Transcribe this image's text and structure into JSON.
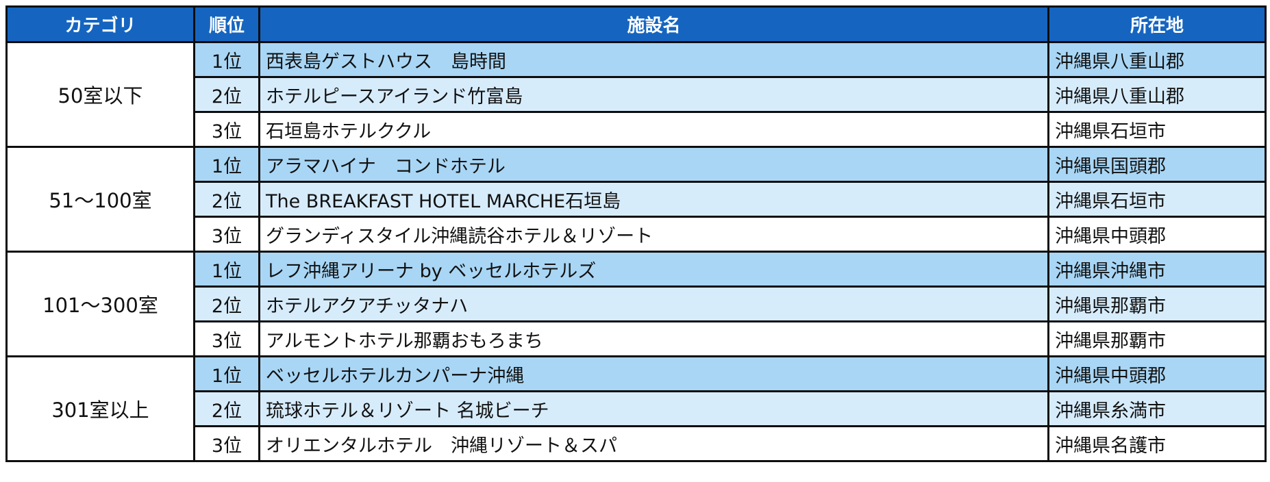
{
  "headers": {
    "category": "カテゴリ",
    "rank": "順位",
    "facility": "施設名",
    "location": "所在地"
  },
  "groups": [
    {
      "category": "50室以下",
      "rows": [
        {
          "rank": "1位",
          "facility": "西表島ゲストハウス　島時間",
          "location": "沖縄県八重山郡"
        },
        {
          "rank": "2位",
          "facility": "ホテルピースアイランド竹富島",
          "location": "沖縄県八重山郡"
        },
        {
          "rank": "3位",
          "facility": "石垣島ホテルククル",
          "location": "沖縄県石垣市"
        }
      ]
    },
    {
      "category": "51～100室",
      "rows": [
        {
          "rank": "1位",
          "facility": "アラマハイナ　コンドホテル",
          "location": "沖縄県国頭郡"
        },
        {
          "rank": "2位",
          "facility": "The BREAKFAST HOTEL MARCHE石垣島",
          "location": "沖縄県石垣市"
        },
        {
          "rank": "3位",
          "facility": "グランディスタイル沖縄読谷ホテル＆リゾート",
          "location": "沖縄県中頭郡"
        }
      ]
    },
    {
      "category": "101～300室",
      "rows": [
        {
          "rank": "1位",
          "facility": "レフ沖縄アリーナ by ベッセルホテルズ",
          "location": "沖縄県沖縄市"
        },
        {
          "rank": "2位",
          "facility": "ホテルアクアチッタナハ",
          "location": "沖縄県那覇市"
        },
        {
          "rank": "3位",
          "facility": "アルモントホテル那覇おもろまち",
          "location": "沖縄県那覇市"
        }
      ]
    },
    {
      "category": "301室以上",
      "rows": [
        {
          "rank": "1位",
          "facility": "ベッセルホテルカンパーナ沖縄",
          "location": "沖縄県中頭郡"
        },
        {
          "rank": "2位",
          "facility": "琉球ホテル＆リゾート 名城ビーチ",
          "location": "沖縄県糸満市"
        },
        {
          "rank": "3位",
          "facility": "オリエンタルホテル　沖縄リゾート＆スパ",
          "location": "沖縄県名護市"
        }
      ]
    }
  ],
  "colors": {
    "header_bg": "#1565c0",
    "header_text": "#ffffff",
    "rank1_bg": "#a9d6f5",
    "rank2_bg": "#d7ecfb",
    "rank3_bg": "#ffffff",
    "border": "#0d0d0d"
  }
}
